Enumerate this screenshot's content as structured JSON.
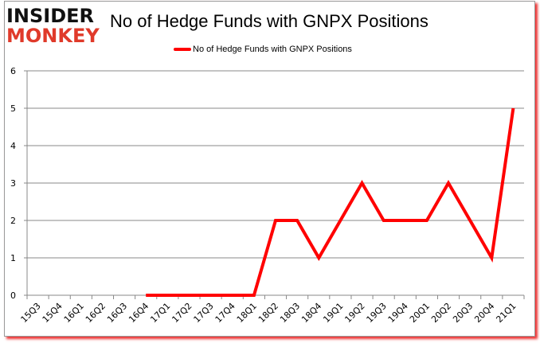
{
  "logo": {
    "line1": "INSIDER",
    "line2": "MONKEY"
  },
  "chart_data": {
    "type": "line",
    "title": "No of Hedge Funds with GNPX Positions",
    "xlabel": "",
    "ylabel": "",
    "ylim": [
      0,
      6
    ],
    "yticks": [
      0,
      1,
      2,
      3,
      4,
      5,
      6
    ],
    "grid": true,
    "legend_position": "top",
    "categories": [
      "15Q3",
      "15Q4",
      "16Q1",
      "16Q2",
      "16Q3",
      "16Q4",
      "17Q1",
      "17Q2",
      "17Q3",
      "17Q4",
      "18Q1",
      "18Q2",
      "18Q3",
      "18Q4",
      "19Q1",
      "19Q2",
      "19Q3",
      "19Q4",
      "20Q1",
      "20Q2",
      "20Q3",
      "20Q4",
      "21Q1"
    ],
    "series": [
      {
        "name": "No of Hedge Funds with GNPX Positions",
        "color": "#ff0000",
        "values": [
          null,
          null,
          null,
          null,
          null,
          0,
          0,
          0,
          0,
          0,
          0,
          2,
          2,
          1,
          2,
          3,
          2,
          2,
          2,
          3,
          2,
          1,
          5
        ]
      }
    ]
  }
}
